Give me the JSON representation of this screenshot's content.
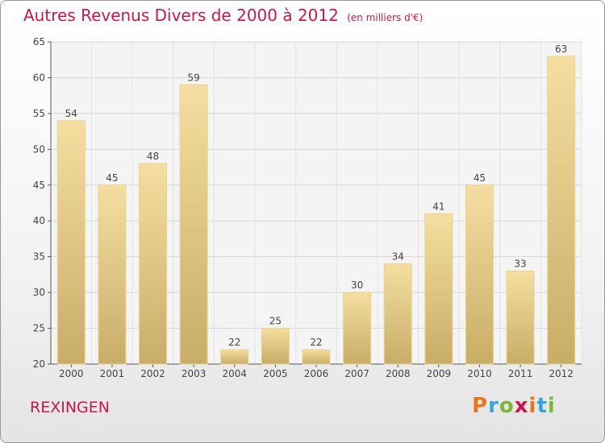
{
  "header": {
    "title": "Autres Revenus Divers de 2000 à 2012",
    "unit": "(en milliers d'€)"
  },
  "place_name": "REXINGEN",
  "logo": {
    "letters": [
      "P",
      "r",
      "o",
      "x",
      "i",
      "t",
      "i"
    ],
    "colors": [
      "#e8741e",
      "#3aa3d8",
      "#7fb53a",
      "#c8174b",
      "#e8741e",
      "#3aa3d8",
      "#7fb53a"
    ]
  },
  "colors": {
    "accent": "#c8174b",
    "bar_light": "#f5dea0",
    "bar_dark": "#c8ad68",
    "grid": "#d6d6d6"
  },
  "chart_data": {
    "type": "bar",
    "categories": [
      "2000",
      "2001",
      "2002",
      "2003",
      "2004",
      "2005",
      "2006",
      "2007",
      "2008",
      "2009",
      "2010",
      "2011",
      "2012"
    ],
    "values": [
      54,
      45,
      48,
      59,
      22,
      25,
      22,
      30,
      34,
      41,
      45,
      33,
      63
    ],
    "ylim": [
      20,
      65
    ],
    "yticks": [
      20,
      25,
      30,
      35,
      40,
      45,
      50,
      55,
      60,
      65
    ],
    "grid": true,
    "show_data_labels": true
  }
}
